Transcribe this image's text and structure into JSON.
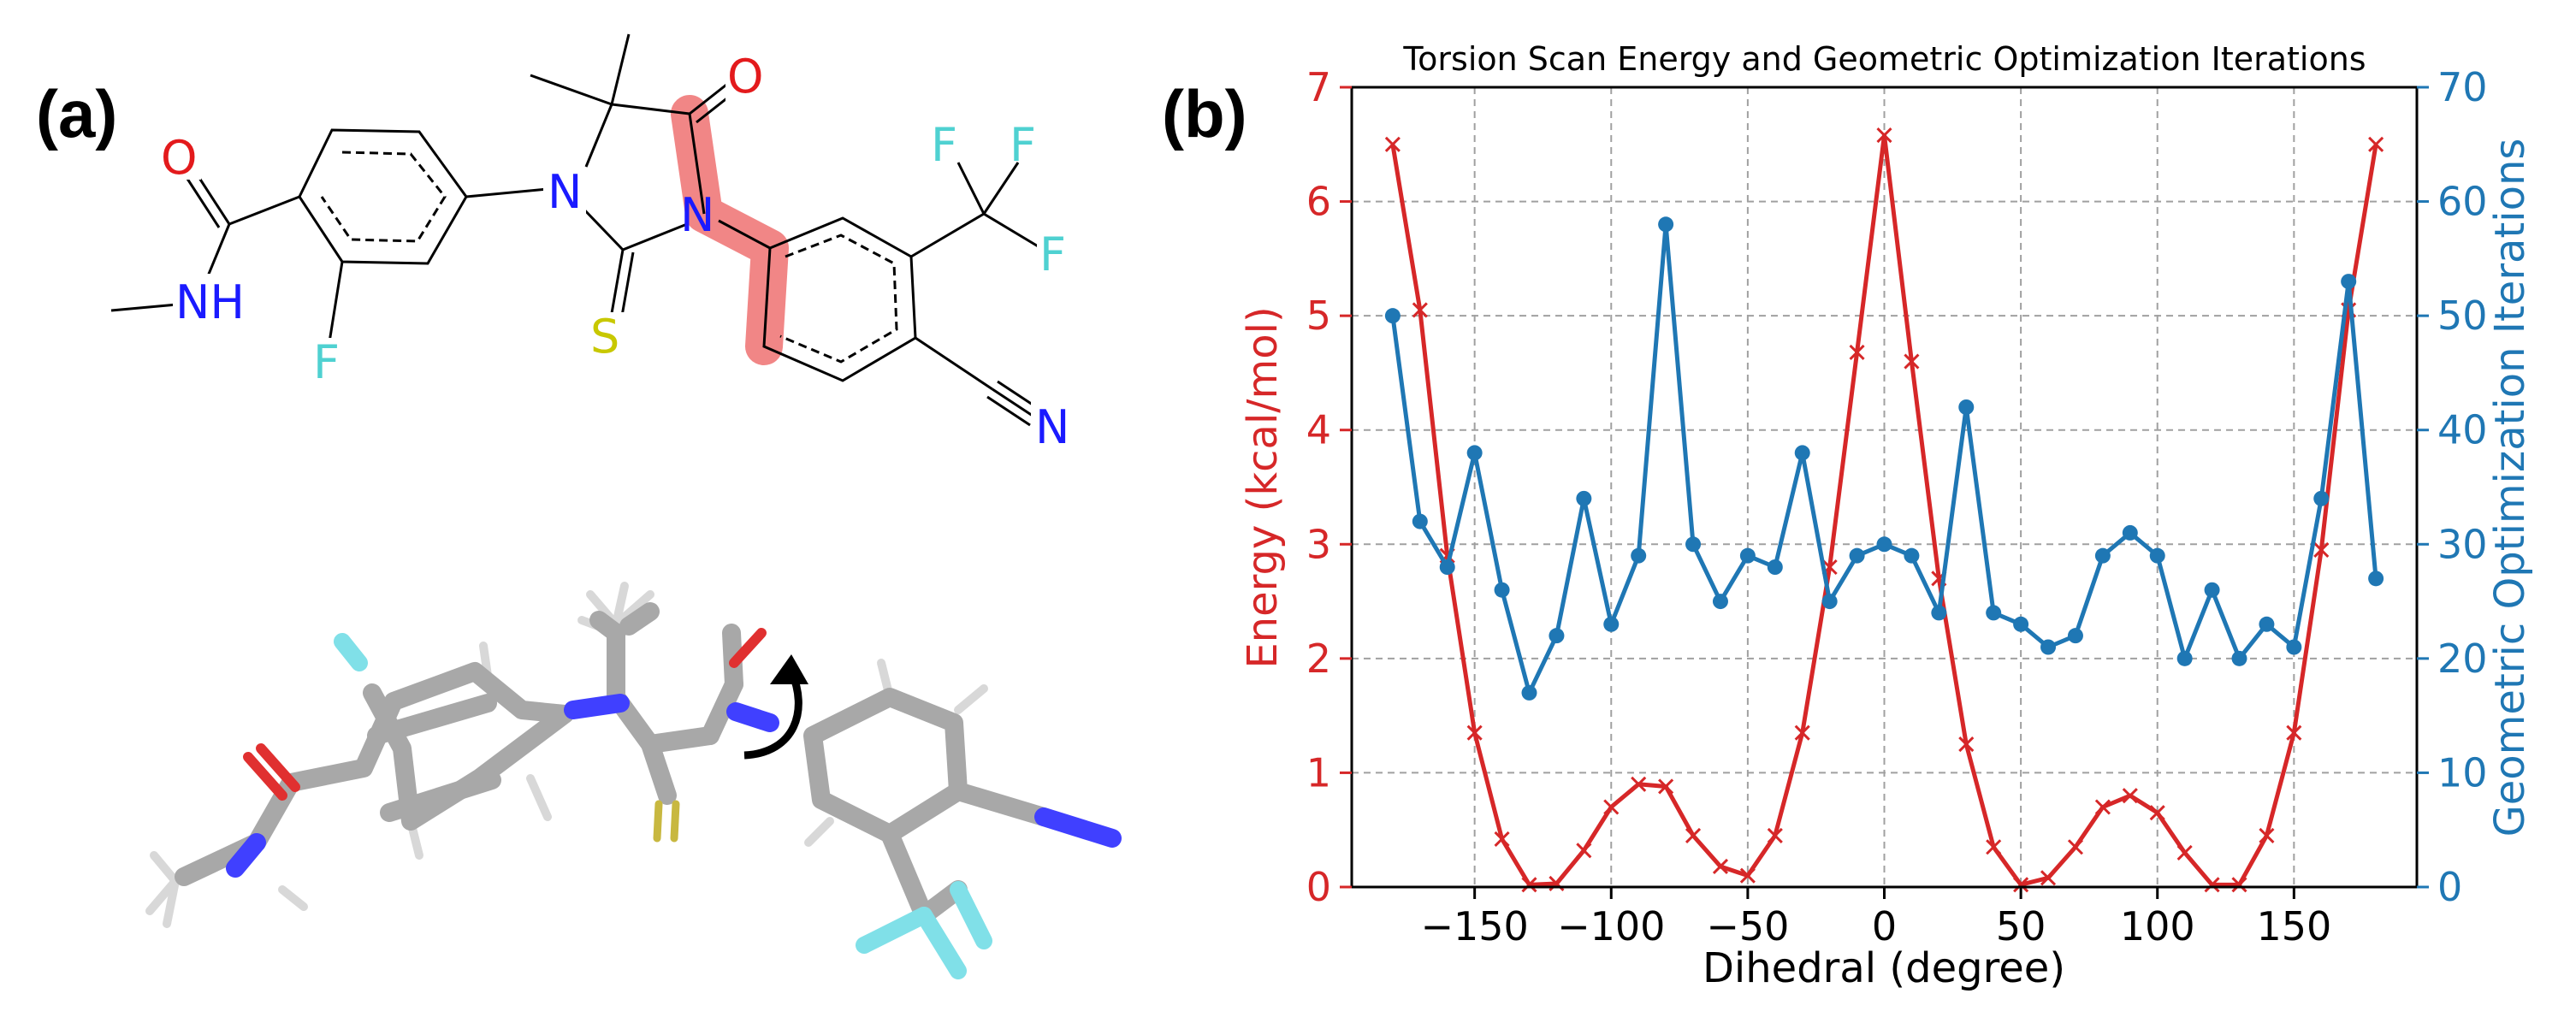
{
  "panel_labels": {
    "a": "(a)",
    "b": "(b)"
  },
  "molecule": {
    "atoms": {
      "O1": "O",
      "O2": "O",
      "NH": "NH",
      "F_left": "F",
      "N1": "N",
      "N2": "N",
      "S": "S",
      "F_top1": "F",
      "F_top2": "F",
      "F_right": "F",
      "N_nitrile": "N"
    },
    "colors": {
      "O": "#e31a1c",
      "N": "#1a1aff",
      "F": "#4fd1d1",
      "S": "#c8c800",
      "highlight": "#f08080",
      "carbon_3d": "#a8a8a8",
      "nitrogen_3d": "#4040ff",
      "oxygen_3d": "#e03030",
      "sulfur_3d": "#c8b840",
      "fluorine_3d": "#80e0e8"
    }
  },
  "colors": {
    "energy": "#d62728",
    "iterations": "#1f77b4",
    "grid": "#a0a0a0",
    "axis": "#000000"
  },
  "chart_data": {
    "type": "line",
    "title": "Torsion Scan Energy and Geometric Optimization Iterations",
    "xlabel": "Dihedral (degree)",
    "ylabel": "Energy (kcal/mol)",
    "y2label": "Geometric Optimization Iterations",
    "xlim": [
      -195,
      195
    ],
    "ylim": [
      0,
      7
    ],
    "y2lim": [
      0,
      70
    ],
    "xticks": [
      -150,
      -100,
      -50,
      0,
      50,
      100,
      150
    ],
    "xtick_labels": [
      "−150",
      "−100",
      "−50",
      "0",
      "50",
      "100",
      "150"
    ],
    "yticks": [
      0,
      1,
      2,
      3,
      4,
      5,
      6,
      7
    ],
    "y2ticks": [
      0,
      10,
      20,
      30,
      40,
      50,
      60,
      70
    ],
    "grid": true,
    "series": [
      {
        "axis": "left",
        "marker": "x",
        "x": [
          -180,
          -170,
          -160,
          -150,
          -140,
          -130,
          -120,
          -110,
          -100,
          -90,
          -80,
          -70,
          -60,
          -50,
          -40,
          -30,
          -20,
          -10,
          0,
          10,
          20,
          30,
          40,
          50,
          60,
          70,
          80,
          90,
          100,
          110,
          120,
          130,
          140,
          150,
          160,
          170,
          180
        ],
        "values": [
          6.5,
          5.05,
          2.9,
          1.35,
          0.42,
          0.02,
          0.03,
          0.32,
          0.7,
          0.9,
          0.88,
          0.45,
          0.18,
          0.1,
          0.45,
          1.35,
          2.8,
          4.68,
          6.58,
          4.6,
          2.7,
          1.25,
          0.35,
          0.02,
          0.08,
          0.35,
          0.7,
          0.8,
          0.65,
          0.3,
          0.02,
          0.02,
          0.45,
          1.35,
          2.95,
          5.05,
          6.5
        ]
      },
      {
        "axis": "right",
        "marker": "o",
        "x": [
          -180,
          -170,
          -160,
          -150,
          -140,
          -130,
          -120,
          -110,
          -100,
          -90,
          -80,
          -70,
          -60,
          -50,
          -40,
          -30,
          -20,
          -10,
          0,
          10,
          20,
          30,
          40,
          50,
          60,
          70,
          80,
          90,
          100,
          110,
          120,
          130,
          140,
          150,
          160,
          170,
          180
        ],
        "values": [
          50,
          32,
          28,
          38,
          26,
          17,
          22,
          34,
          23,
          29,
          58,
          30,
          25,
          29,
          28,
          38,
          25,
          29,
          30,
          29,
          24,
          42,
          24,
          23,
          21,
          22,
          29,
          31,
          29,
          20,
          26,
          20,
          23,
          21,
          34,
          53,
          27
        ]
      }
    ]
  }
}
